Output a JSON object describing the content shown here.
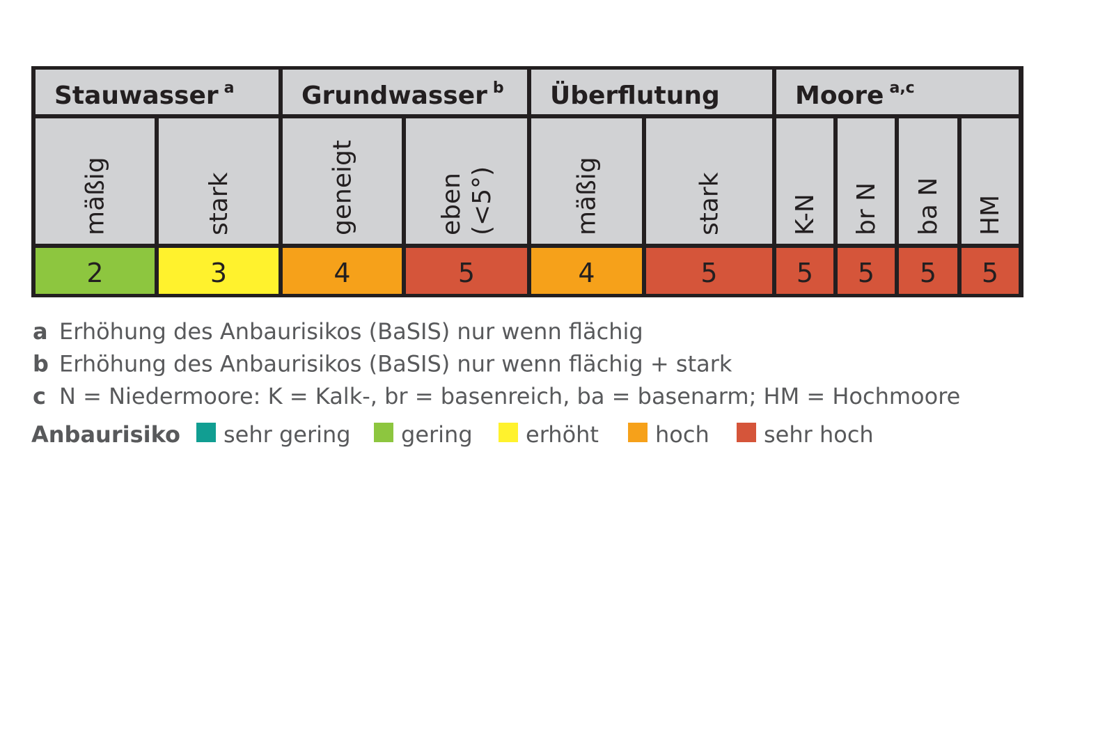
{
  "table": {
    "groups": [
      {
        "label": "Stauwasser",
        "sup": "a",
        "columns": [
          {
            "header": [
              "mäßig"
            ],
            "value": 2
          },
          {
            "header": [
              "stark"
            ],
            "value": 3
          }
        ]
      },
      {
        "label": "Grundwasser",
        "sup": "b",
        "columns": [
          {
            "header": [
              "geneigt"
            ],
            "value": 4
          },
          {
            "header": [
              "eben",
              "(<5°)"
            ],
            "value": 5
          }
        ]
      },
      {
        "label": "Überflutung",
        "columns": [
          {
            "header": [
              "mäßig"
            ],
            "value": 4
          },
          {
            "header": [
              "stark"
            ],
            "value": 5
          }
        ]
      },
      {
        "label": "Moore",
        "sup": "a,c",
        "columns": [
          {
            "header": [
              "K-N"
            ],
            "value": 5
          },
          {
            "header": [
              "br N"
            ],
            "value": 5
          },
          {
            "header": [
              "ba N"
            ],
            "value": 5
          },
          {
            "header": [
              "HM"
            ],
            "value": 5
          }
        ]
      }
    ]
  },
  "footnotes": [
    {
      "key": "a",
      "text": "Erhöhung des Anbaurisikos (BaSIS) nur wenn flächig"
    },
    {
      "key": "b",
      "text": "Erhöhung des Anbaurisikos (BaSIS) nur wenn flächig + stark"
    },
    {
      "key": "c",
      "text": "N = Niedermoore: K = Kalk-, br = basenreich, ba = basenarm; HM = Hochmoore"
    }
  ],
  "legend": {
    "title": "Anbaurisiko",
    "items": [
      {
        "label": "sehr gering",
        "color": "#119e92"
      },
      {
        "label": "gering",
        "color": "#8dc63f"
      },
      {
        "label": "erhöht",
        "color": "#fff22d"
      },
      {
        "label": "hoch",
        "color": "#f6a11a"
      },
      {
        "label": "sehr hoch",
        "color": "#d5553a"
      }
    ]
  }
}
